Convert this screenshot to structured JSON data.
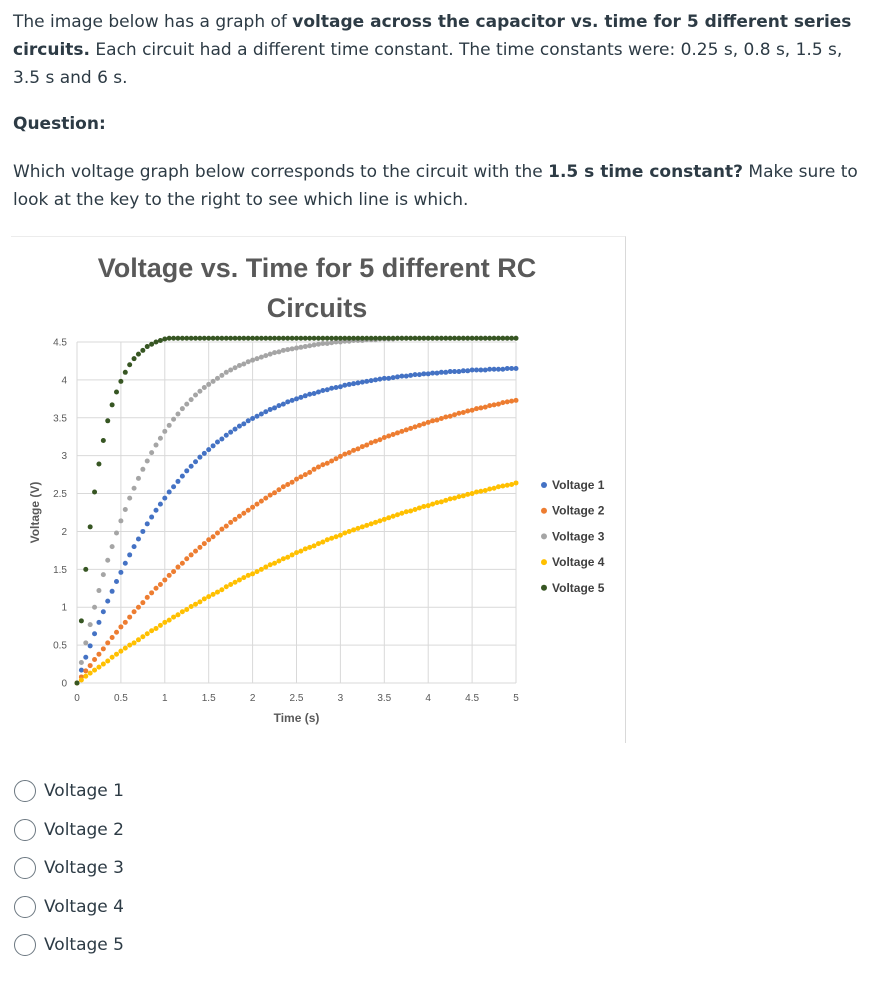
{
  "intro": {
    "p1_a": "The image below has a graph of ",
    "p1_b": "voltage across the capacitor vs. time for 5 different series circuits.",
    "p1_c": " Each circuit had a different time constant. The time constants were: 0.25 s, 0.8 s, 1.5 s, 3.5 s and 6 s."
  },
  "question_label": "Question:",
  "prompt": {
    "a": "Which voltage graph below corresponds to the circuit with the ",
    "b": "1.5 s time constant?",
    "c": " Make sure to look at the key to the right to see which line is which."
  },
  "options": [
    "Voltage 1",
    "Voltage 2",
    "Voltage 3",
    "Voltage 4",
    "Voltage 5"
  ],
  "chart_data": {
    "type": "scatter",
    "title": "Voltage vs. Time for 5 different RC Circuits",
    "title_lines": [
      "Voltage vs. Time for 5 different RC",
      "Circuits"
    ],
    "xlabel": "Time (s)",
    "ylabel": "Voltage (V)",
    "xlim": [
      0,
      5
    ],
    "ylim": [
      0,
      4.5
    ],
    "xticks": [
      0,
      0.5,
      1,
      1.5,
      2,
      2.5,
      3,
      3.5,
      4,
      4.5,
      5
    ],
    "xtick_labels": [
      "0",
      "0.5",
      "1",
      "1.5",
      "2",
      "2.5",
      "3",
      "3.5",
      "4",
      "4.5",
      "5"
    ],
    "yticks": [
      0,
      0.5,
      1,
      1.5,
      2,
      2.5,
      3,
      3.5,
      4,
      4.5
    ],
    "ytick_labels": [
      "0",
      "0.5",
      "1",
      "1.5",
      "2",
      "2.5",
      "3",
      "3.5",
      "4",
      "4.5"
    ],
    "grid": true,
    "legend_position": "right",
    "series": [
      {
        "name": "Voltage 1",
        "color": "#4472c4",
        "x_start": 0,
        "x_end": 5,
        "x_step": 0.05,
        "y": [
          0,
          0.17,
          0.34,
          0.49,
          0.65,
          0.8,
          0.94,
          1.08,
          1.21,
          1.34,
          1.46,
          1.58,
          1.69,
          1.8,
          1.9,
          2.0,
          2.1,
          2.19,
          2.28,
          2.36,
          2.44,
          2.52,
          2.59,
          2.66,
          2.73,
          2.8,
          2.86,
          2.92,
          2.98,
          3.03,
          3.08,
          3.13,
          3.18,
          3.22,
          3.27,
          3.31,
          3.35,
          3.39,
          3.42,
          3.46,
          3.49,
          3.52,
          3.55,
          3.58,
          3.61,
          3.63,
          3.66,
          3.68,
          3.71,
          3.73,
          3.75,
          3.77,
          3.79,
          3.81,
          3.82,
          3.84,
          3.86,
          3.87,
          3.89,
          3.9,
          3.91,
          3.93,
          3.94,
          3.95,
          3.96,
          3.97,
          3.98,
          3.99,
          4.0,
          4.01,
          4.02,
          4.02,
          4.03,
          4.04,
          4.05,
          4.05,
          4.06,
          4.07,
          4.07,
          4.08,
          4.08,
          4.09,
          4.09,
          4.1,
          4.1,
          4.11,
          4.11,
          4.11,
          4.12,
          4.12,
          4.13,
          4.13,
          4.13,
          4.13,
          4.14,
          4.14,
          4.14,
          4.14,
          4.15,
          4.15,
          4.15
        ]
      },
      {
        "name": "Voltage 2",
        "color": "#ed7d31",
        "x_start": 0,
        "x_end": 5,
        "x_step": 0.05,
        "y": [
          0,
          0.08,
          0.16,
          0.23,
          0.31,
          0.38,
          0.45,
          0.53,
          0.6,
          0.67,
          0.74,
          0.8,
          0.87,
          0.94,
          1.0,
          1.06,
          1.13,
          1.19,
          1.25,
          1.3,
          1.36,
          1.42,
          1.47,
          1.53,
          1.58,
          1.64,
          1.69,
          1.74,
          1.79,
          1.84,
          1.89,
          1.93,
          1.98,
          2.03,
          2.07,
          2.12,
          2.16,
          2.2,
          2.24,
          2.28,
          2.32,
          2.36,
          2.4,
          2.44,
          2.48,
          2.51,
          2.55,
          2.59,
          2.62,
          2.65,
          2.69,
          2.72,
          2.75,
          2.78,
          2.82,
          2.85,
          2.88,
          2.9,
          2.93,
          2.96,
          2.99,
          3.02,
          3.04,
          3.07,
          3.09,
          3.12,
          3.14,
          3.17,
          3.19,
          3.21,
          3.24,
          3.26,
          3.28,
          3.3,
          3.32,
          3.34,
          3.36,
          3.38,
          3.4,
          3.42,
          3.44,
          3.46,
          3.47,
          3.49,
          3.51,
          3.52,
          3.54,
          3.56,
          3.57,
          3.59,
          3.6,
          3.62,
          3.63,
          3.64,
          3.66,
          3.67,
          3.68,
          3.7,
          3.71,
          3.72,
          3.73
        ]
      },
      {
        "name": "Voltage 3",
        "color": "#a5a5a5",
        "x_start": 0,
        "x_end": 5,
        "x_step": 0.05,
        "y": [
          0,
          0.27,
          0.53,
          0.77,
          1.0,
          1.22,
          1.43,
          1.62,
          1.8,
          1.98,
          2.14,
          2.29,
          2.44,
          2.57,
          2.7,
          2.82,
          2.93,
          3.04,
          3.14,
          3.23,
          3.32,
          3.4,
          3.48,
          3.55,
          3.62,
          3.68,
          3.74,
          3.8,
          3.85,
          3.9,
          3.94,
          3.98,
          4.02,
          4.06,
          4.1,
          4.13,
          4.16,
          4.19,
          4.21,
          4.24,
          4.26,
          4.28,
          4.3,
          4.32,
          4.34,
          4.36,
          4.37,
          4.39,
          4.4,
          4.41,
          4.42,
          4.43,
          4.44,
          4.45,
          4.46,
          4.47,
          4.48,
          4.48,
          4.49,
          4.5,
          4.5,
          4.51,
          4.51,
          4.52,
          4.52,
          4.52,
          4.53,
          4.53,
          4.53,
          4.54,
          4.54,
          4.54,
          4.54,
          4.55,
          4.55,
          4.55,
          4.55,
          4.55,
          4.55,
          4.56,
          4.56,
          4.56,
          4.56,
          4.56,
          4.56,
          4.56,
          4.56,
          4.56,
          4.56,
          4.56,
          4.56,
          4.57,
          4.57,
          4.57,
          4.57,
          4.57,
          4.57,
          4.57,
          4.57,
          4.57,
          4.57
        ]
      },
      {
        "name": "Voltage 4",
        "color": "#ffc000",
        "x_start": 0,
        "x_end": 5,
        "x_step": 0.05,
        "y": [
          0,
          0.04,
          0.09,
          0.13,
          0.17,
          0.21,
          0.25,
          0.29,
          0.34,
          0.38,
          0.42,
          0.46,
          0.5,
          0.53,
          0.57,
          0.61,
          0.65,
          0.69,
          0.72,
          0.76,
          0.8,
          0.83,
          0.87,
          0.9,
          0.94,
          0.97,
          1.01,
          1.04,
          1.07,
          1.11,
          1.14,
          1.17,
          1.2,
          1.23,
          1.27,
          1.3,
          1.33,
          1.36,
          1.39,
          1.42,
          1.44,
          1.47,
          1.5,
          1.53,
          1.56,
          1.58,
          1.61,
          1.64,
          1.66,
          1.69,
          1.72,
          1.74,
          1.77,
          1.79,
          1.81,
          1.84,
          1.86,
          1.89,
          1.91,
          1.93,
          1.95,
          1.98,
          2.0,
          2.02,
          2.04,
          2.06,
          2.08,
          2.1,
          2.12,
          2.14,
          2.16,
          2.18,
          2.2,
          2.22,
          2.24,
          2.26,
          2.27,
          2.29,
          2.31,
          2.33,
          2.34,
          2.36,
          2.38,
          2.39,
          2.41,
          2.43,
          2.44,
          2.46,
          2.47,
          2.49,
          2.5,
          2.52,
          2.53,
          2.54,
          2.56,
          2.57,
          2.59,
          2.6,
          2.61,
          2.62,
          2.64
        ]
      },
      {
        "name": "Voltage 5",
        "color": "#375623",
        "x_start": 0,
        "x_end": 5,
        "x_step": 0.05,
        "y": [
          0,
          0.82,
          1.5,
          2.06,
          2.52,
          2.89,
          3.2,
          3.46,
          3.67,
          3.84,
          3.98,
          4.1,
          4.2,
          4.28,
          4.34,
          4.39,
          4.44,
          4.47,
          4.5,
          4.52,
          4.54,
          4.56,
          4.57,
          4.58,
          4.59,
          4.59,
          4.6,
          4.6,
          4.61,
          4.61,
          4.61,
          4.61,
          4.61,
          4.61,
          4.62,
          4.62,
          4.62,
          4.62,
          4.62,
          4.62,
          4.62,
          4.62,
          4.62,
          4.62,
          4.62,
          4.62,
          4.62,
          4.62,
          4.62,
          4.62,
          4.62,
          4.62,
          4.62,
          4.62,
          4.62,
          4.62,
          4.62,
          4.62,
          4.62,
          4.62,
          4.62,
          4.62,
          4.62,
          4.62,
          4.62,
          4.62,
          4.62,
          4.62,
          4.62,
          4.62,
          4.62,
          4.62,
          4.62,
          4.62,
          4.62,
          4.62,
          4.62,
          4.62,
          4.62,
          4.62,
          4.62,
          4.62,
          4.62,
          4.62,
          4.62,
          4.62,
          4.62,
          4.62,
          4.62,
          4.62,
          4.62,
          4.62,
          4.62,
          4.62,
          4.62,
          4.62,
          4.62,
          4.62,
          4.62,
          4.62,
          4.62
        ]
      }
    ]
  }
}
